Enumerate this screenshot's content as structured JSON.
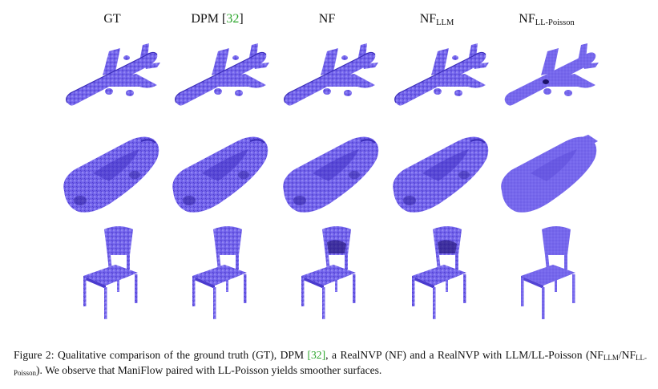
{
  "columns": [
    {
      "id": "gt",
      "label": "GT"
    },
    {
      "id": "dpm",
      "label_main": "DPM ",
      "cite_open": "[",
      "cite_num": "32",
      "cite_close": "]"
    },
    {
      "id": "nf",
      "label": "NF"
    },
    {
      "id": "nf-llm",
      "label_main": "NF",
      "label_sub": "LLM"
    },
    {
      "id": "nf-ll-poisson",
      "label_main": "NF",
      "label_sub": "LL-Poisson"
    }
  ],
  "rows": [
    {
      "id": "airplane"
    },
    {
      "id": "car"
    },
    {
      "id": "chair"
    }
  ],
  "colors": {
    "point_fill": "#6a5ae6",
    "point_dark": "#2a1c9a",
    "point_light": "#9d93f2",
    "citation": "#2aa52a"
  },
  "caption": {
    "figure_label": "Figure 2:",
    "t1": " Qualitative comparison of the ground truth (GT), DPM ",
    "cite": "[32]",
    "t2": ", a RealNVP (NF) and a RealNVP with LLM/LL-Poisson (NF",
    "sub1": "LLM",
    "t3": "/NF",
    "sub2": "LL-Poisson",
    "t4": "). We observe that ManiFlow paired with LL-Poisson yields smoother surfaces."
  }
}
